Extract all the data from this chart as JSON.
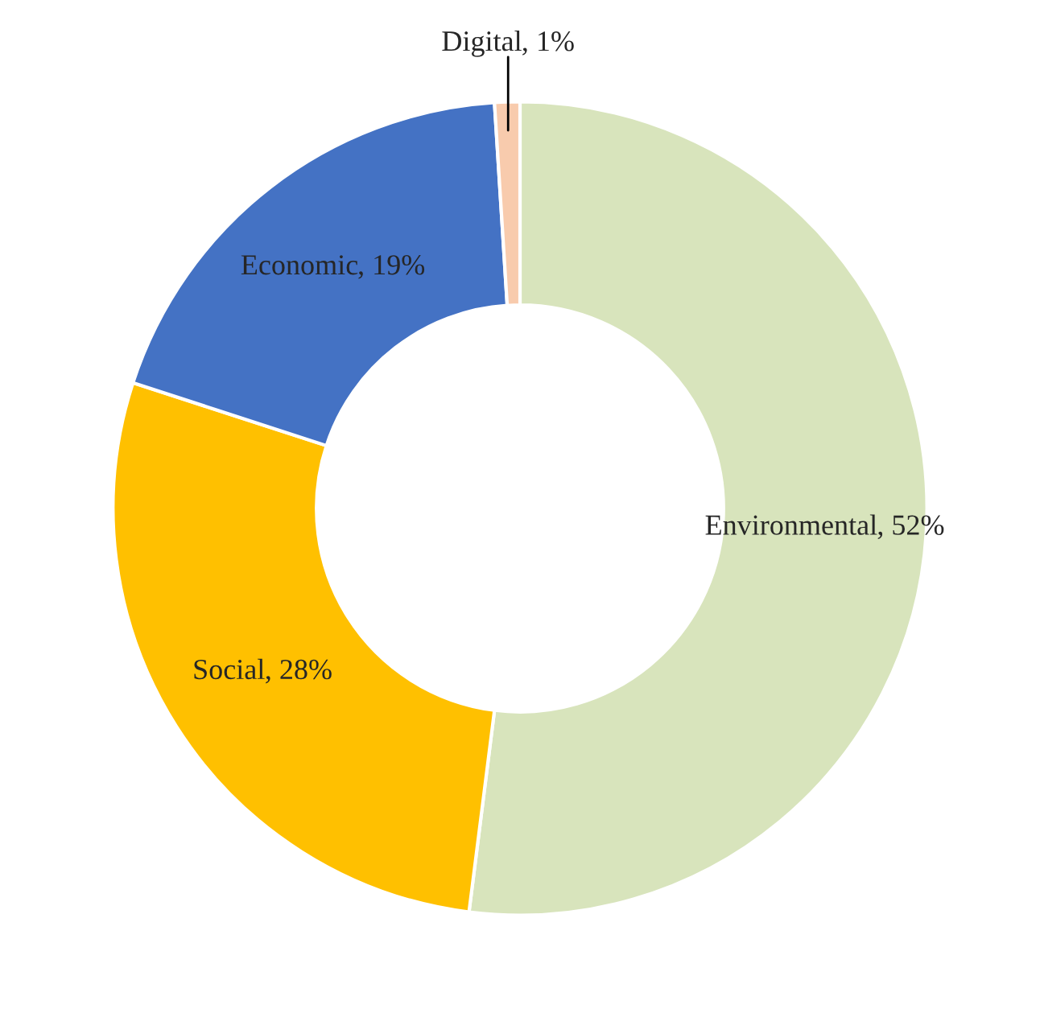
{
  "chart_data": {
    "type": "donut",
    "categories": [
      "Environmental",
      "Social",
      "Economic",
      "Digital"
    ],
    "values": [
      52,
      28,
      19,
      1
    ],
    "colors": [
      "#d8e4bc",
      "#ffc000",
      "#4472c4",
      "#f8cbad"
    ],
    "value_labels": [
      ", 52%",
      ", 28%",
      ", 19%",
      ", 1%"
    ],
    "legend": false
  }
}
